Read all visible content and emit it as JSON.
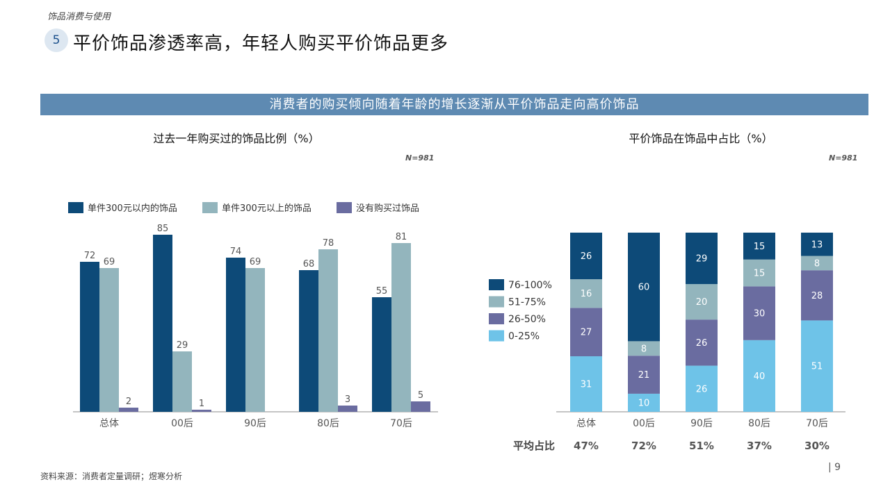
{
  "header": {
    "section_tag": "饰品消费与使用",
    "number": "5",
    "title": "平价饰品渗透率高，年轻人购买平价饰品更多"
  },
  "banner": "消费者的购买倾向随着年龄的增长逐渐从平价饰品走向高价饰品",
  "left_chart": {
    "title": "过去一年购买过的饰品比例（%）",
    "note": "N=981"
  },
  "right_chart": {
    "title": "平价饰品在饰品中占比（%）",
    "note": "N=981",
    "avg_label": "平均占比",
    "averages": [
      "47%",
      "72%",
      "51%",
      "37%",
      "30%"
    ]
  },
  "footer": {
    "source": "资料来源：消费者定量调研；煜寒分析",
    "page": "| 9"
  },
  "chart_data": [
    {
      "type": "bar",
      "title": "过去一年购买过的饰品比例（%）",
      "categories": [
        "总体",
        "00后",
        "90后",
        "80后",
        "70后"
      ],
      "series": [
        {
          "name": "单件300元以内的饰品",
          "color": "#0d4a78",
          "values": [
            72,
            85,
            74,
            68,
            55
          ]
        },
        {
          "name": "单件300元以上的饰品",
          "color": "#93b5bd",
          "values": [
            69,
            29,
            69,
            78,
            81
          ]
        },
        {
          "name": "没有购买过饰品",
          "color": "#6a6ca0",
          "values": [
            2,
            1,
            null,
            3,
            5
          ]
        }
      ],
      "ylim": [
        0,
        100
      ],
      "legend": "top"
    },
    {
      "type": "bar",
      "stacked": true,
      "title": "平价饰品在饰品中占比（%）",
      "categories": [
        "总体",
        "00后",
        "90后",
        "80后",
        "70后"
      ],
      "series": [
        {
          "name": "0-25%",
          "color": "#6ec3e8",
          "values": [
            31,
            10,
            26,
            40,
            51
          ]
        },
        {
          "name": "26-50%",
          "color": "#6a6ca0",
          "values": [
            27,
            21,
            26,
            30,
            28
          ]
        },
        {
          "name": "51-75%",
          "color": "#93b5bd",
          "values": [
            16,
            8,
            20,
            15,
            8
          ]
        },
        {
          "name": "76-100%",
          "color": "#0d4a78",
          "values": [
            26,
            60,
            29,
            15,
            13
          ]
        }
      ],
      "ylim": [
        0,
        100
      ],
      "legend": "left"
    }
  ]
}
